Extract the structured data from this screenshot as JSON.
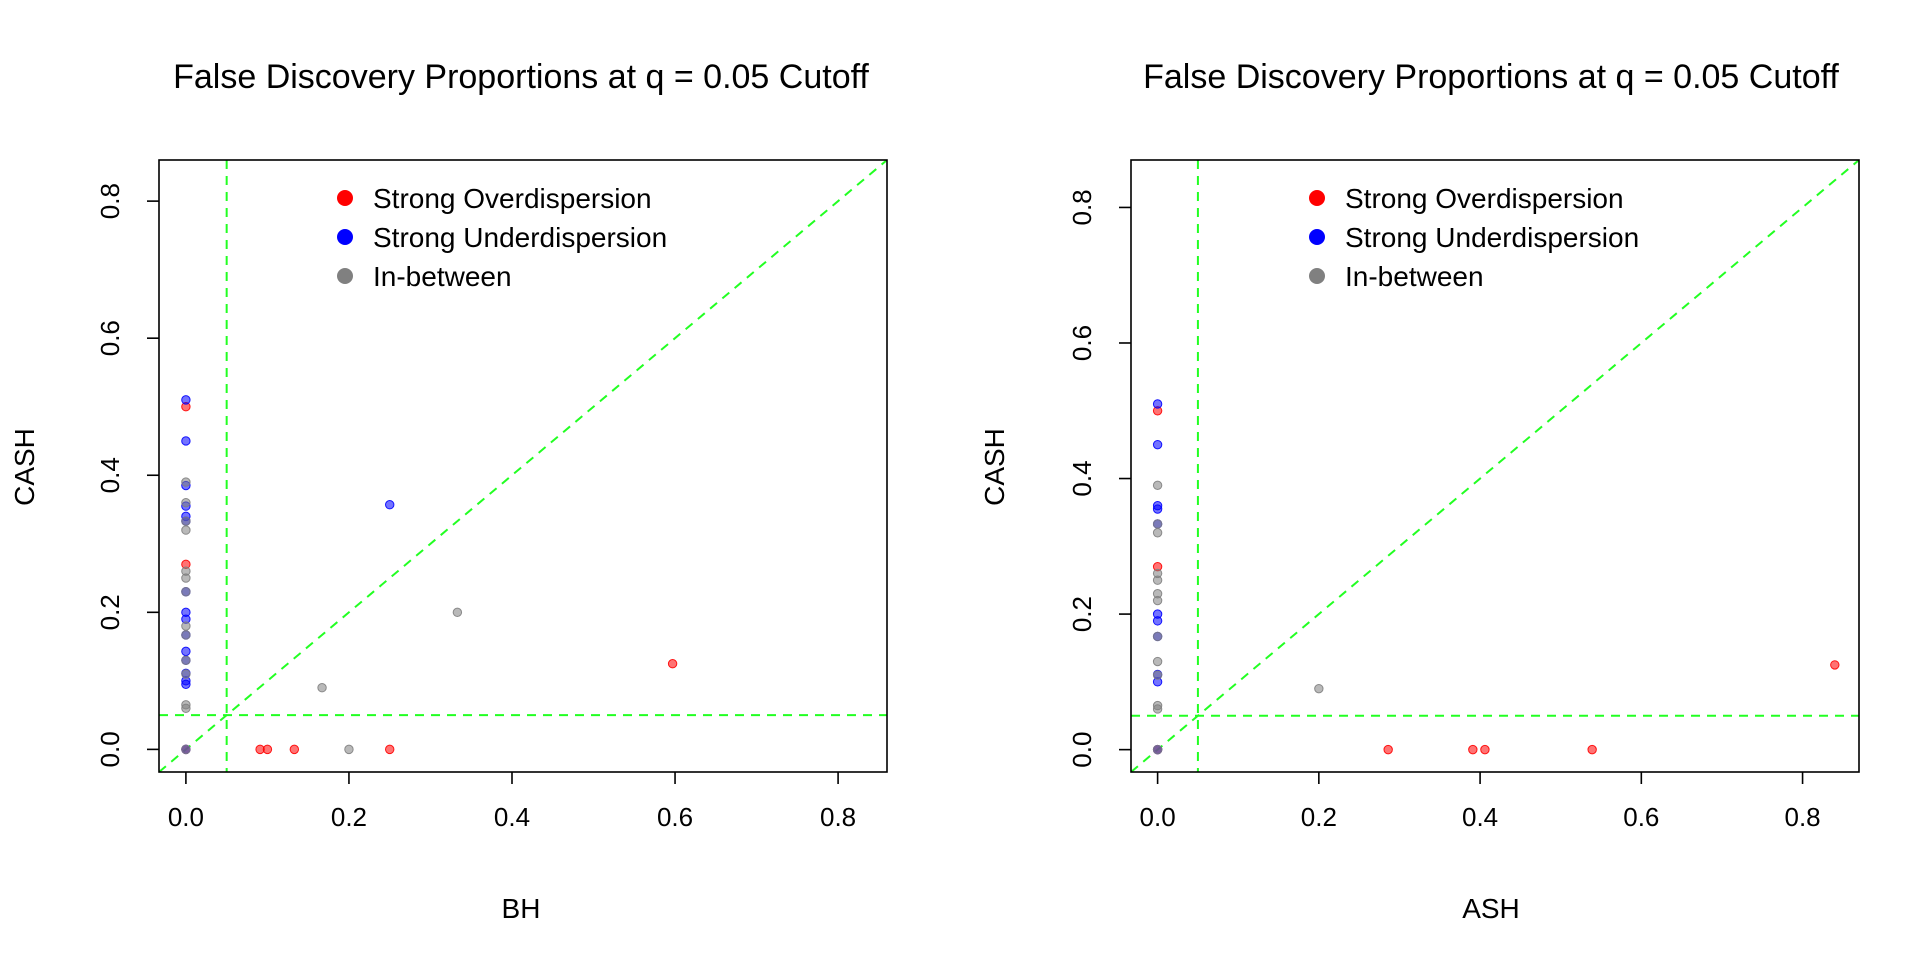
{
  "colors": {
    "overdispersion": "#ff0000",
    "underdispersion": "#0000ff",
    "inbetween": "#808080",
    "reference_lines": "#22ff22"
  },
  "chart_data": [
    {
      "type": "scatter",
      "title": "False Discovery Proportions at q = 0.05 Cutoff",
      "xlabel": "BH",
      "ylabel": "CASH",
      "xlim": [
        -0.033,
        0.86
      ],
      "ylim": [
        -0.033,
        0.86
      ],
      "xticks": [
        0.0,
        0.2,
        0.4,
        0.6,
        0.8
      ],
      "xtick_labels": [
        "0.0",
        "0.2",
        "0.4",
        "0.6",
        "0.8"
      ],
      "yticks": [
        0.0,
        0.2,
        0.4,
        0.6,
        0.8
      ],
      "ytick_labels": [
        "0.0",
        "0.2",
        "0.4",
        "0.6",
        "0.8"
      ],
      "reference_lines": {
        "vertical": 0.05,
        "horizontal": 0.05,
        "diagonal": true
      },
      "legend_position": "top",
      "legend": [
        {
          "label": "Strong Overdispersion",
          "key": "overdispersion"
        },
        {
          "label": "Strong Underdispersion",
          "key": "underdispersion"
        },
        {
          "label": "In-between",
          "key": "inbetween"
        }
      ],
      "series": [
        {
          "name": "Strong Overdispersion",
          "key": "overdispersion",
          "points": [
            [
              0,
              0.5
            ],
            [
              0,
              0.27
            ],
            [
              0,
              0.0
            ],
            [
              0.091,
              0.0
            ],
            [
              0.1,
              0.0
            ],
            [
              0.133,
              0.0
            ],
            [
              0.25,
              0.0
            ],
            [
              0.597,
              0.125
            ]
          ]
        },
        {
          "name": "Strong Underdispersion",
          "key": "underdispersion",
          "points": [
            [
              0,
              0.51
            ],
            [
              0,
              0.45
            ],
            [
              0,
              0.385
            ],
            [
              0,
              0.355
            ],
            [
              0,
              0.34
            ],
            [
              0,
              0.333
            ],
            [
              0,
              0.23
            ],
            [
              0,
              0.2
            ],
            [
              0,
              0.19
            ],
            [
              0,
              0.167
            ],
            [
              0,
              0.143
            ],
            [
              0,
              0.13
            ],
            [
              0,
              0.111
            ],
            [
              0,
              0.1
            ],
            [
              0,
              0.095
            ],
            [
              0,
              0.0
            ],
            [
              0.25,
              0.357
            ]
          ]
        },
        {
          "name": "In-between",
          "key": "inbetween",
          "points": [
            [
              0,
              0.39
            ],
            [
              0,
              0.36
            ],
            [
              0,
              0.333
            ],
            [
              0,
              0.32
            ],
            [
              0,
              0.26
            ],
            [
              0,
              0.25
            ],
            [
              0,
              0.23
            ],
            [
              0,
              0.18
            ],
            [
              0,
              0.167
            ],
            [
              0,
              0.13
            ],
            [
              0,
              0.11
            ],
            [
              0,
              0.065
            ],
            [
              0,
              0.06
            ],
            [
              0,
              0.0
            ],
            [
              0.167,
              0.09
            ],
            [
              0.2,
              0.0
            ],
            [
              0.333,
              0.2
            ]
          ]
        }
      ]
    },
    {
      "type": "scatter",
      "title": "False Discovery Proportions at q = 0.05 Cutoff",
      "xlabel": "ASH",
      "ylabel": "CASH",
      "xlim": [
        -0.033,
        0.87
      ],
      "ylim": [
        -0.033,
        0.87
      ],
      "xticks": [
        0.0,
        0.2,
        0.4,
        0.6,
        0.8
      ],
      "xtick_labels": [
        "0.0",
        "0.2",
        "0.4",
        "0.6",
        "0.8"
      ],
      "yticks": [
        0.0,
        0.2,
        0.4,
        0.6,
        0.8
      ],
      "ytick_labels": [
        "0.0",
        "0.2",
        "0.4",
        "0.6",
        "0.8"
      ],
      "reference_lines": {
        "vertical": 0.05,
        "horizontal": 0.05,
        "diagonal": true
      },
      "legend_position": "top",
      "legend": [
        {
          "label": "Strong Overdispersion",
          "key": "overdispersion"
        },
        {
          "label": "Strong Underdispersion",
          "key": "underdispersion"
        },
        {
          "label": "In-between",
          "key": "inbetween"
        }
      ],
      "series": [
        {
          "name": "Strong Overdispersion",
          "key": "overdispersion",
          "points": [
            [
              0,
              0.5
            ],
            [
              0,
              0.27
            ],
            [
              0,
              0.0
            ],
            [
              0.286,
              0.0
            ],
            [
              0.391,
              0.0
            ],
            [
              0.406,
              0.0
            ],
            [
              0.539,
              0.0
            ],
            [
              0.84,
              0.125
            ]
          ]
        },
        {
          "name": "Strong Underdispersion",
          "key": "underdispersion",
          "points": [
            [
              0,
              0.51
            ],
            [
              0,
              0.45
            ],
            [
              0,
              0.36
            ],
            [
              0,
              0.355
            ],
            [
              0,
              0.333
            ],
            [
              0,
              0.2
            ],
            [
              0,
              0.19
            ],
            [
              0,
              0.167
            ],
            [
              0,
              0.111
            ],
            [
              0,
              0.1
            ],
            [
              0,
              0.0
            ]
          ]
        },
        {
          "name": "In-between",
          "key": "inbetween",
          "points": [
            [
              0,
              0.39
            ],
            [
              0,
              0.333
            ],
            [
              0,
              0.32
            ],
            [
              0,
              0.26
            ],
            [
              0,
              0.25
            ],
            [
              0,
              0.23
            ],
            [
              0,
              0.22
            ],
            [
              0,
              0.167
            ],
            [
              0,
              0.13
            ],
            [
              0,
              0.11
            ],
            [
              0,
              0.065
            ],
            [
              0,
              0.06
            ],
            [
              0,
              0.0
            ],
            [
              0.2,
              0.09
            ]
          ]
        }
      ]
    }
  ]
}
